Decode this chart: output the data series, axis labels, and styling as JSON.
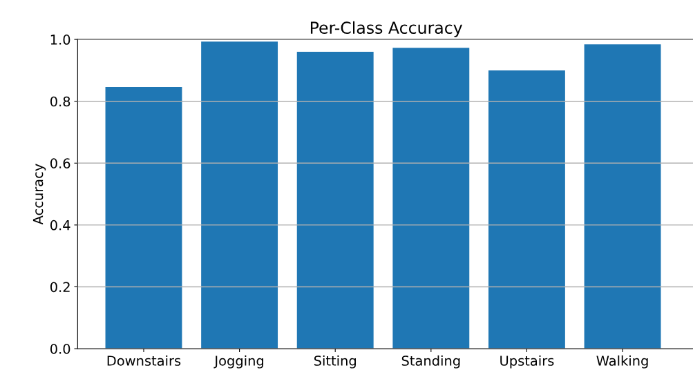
{
  "chart_data": {
    "type": "bar",
    "title": "Per-Class Accuracy",
    "ylabel": "Accuracy",
    "categories": [
      "Downstairs",
      "Jogging",
      "Sitting",
      "Standing",
      "Upstairs",
      "Walking"
    ],
    "values": [
      0.846,
      0.993,
      0.96,
      0.973,
      0.9,
      0.984
    ],
    "color": "#1f77b4",
    "ylim": [
      0,
      1.0
    ],
    "yticks": [
      {
        "value": 0,
        "label": "0.0"
      },
      0.2,
      0.4,
      0.6,
      0.8,
      {
        "value": 1.0,
        "label": "1.0"
      }
    ],
    "grid": "y"
  }
}
